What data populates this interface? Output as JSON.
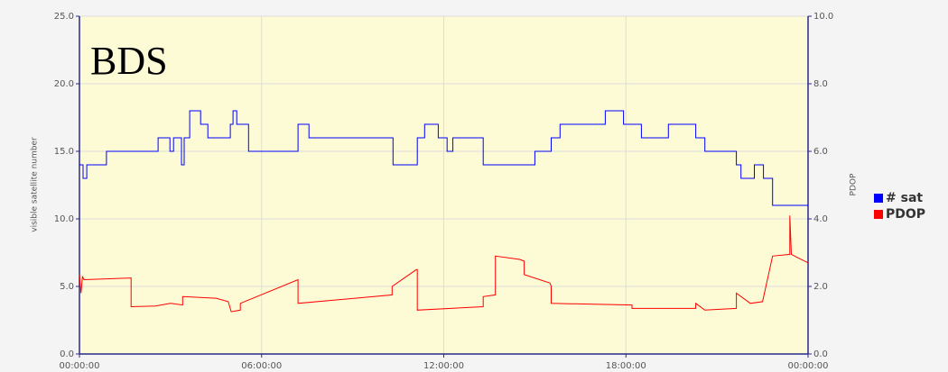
{
  "chart_data": {
    "type": "line",
    "annotation": "BDS",
    "ylabel": "visible satellite number",
    "y2label": "PDOP",
    "xlim": [
      0,
      24
    ],
    "xticks": [
      {
        "value": 0,
        "label": "00:00:00"
      },
      {
        "value": 6,
        "label": "06:00:00"
      },
      {
        "value": 12,
        "label": "12:00:00"
      },
      {
        "value": 18,
        "label": "18:00:00"
      },
      {
        "value": 24,
        "label": "00:00:00"
      }
    ],
    "ylim": [
      0,
      25
    ],
    "yticks": [
      {
        "value": 0,
        "label": "0.0"
      },
      {
        "value": 5,
        "label": "5.0"
      },
      {
        "value": 10,
        "label": "10.0"
      },
      {
        "value": 15,
        "label": "15.0"
      },
      {
        "value": 20,
        "label": "20.0"
      },
      {
        "value": 25,
        "label": "25.0"
      }
    ],
    "y2lim": [
      0,
      10
    ],
    "y2ticks": [
      {
        "value": 0,
        "label": "0.0"
      },
      {
        "value": 2,
        "label": "2.0"
      },
      {
        "value": 4,
        "label": "4.0"
      },
      {
        "value": 6,
        "label": "6.0"
      },
      {
        "value": 8,
        "label": "8.0"
      },
      {
        "value": 10,
        "label": "10.0"
      }
    ],
    "grid": true,
    "legend": "right",
    "series": [
      {
        "name": "# sat",
        "color": "#0000ff",
        "x": [
          0,
          0.12,
          0.12,
          0.24,
          0.24,
          0.89,
          0.89,
          2.59,
          2.59,
          2.98,
          2.98,
          3.1,
          3.1,
          3.36,
          3.36,
          3.45,
          3.45,
          3.63,
          3.63,
          3.99,
          3.99,
          4.23,
          4.23,
          4.97,
          4.97,
          5.06,
          5.06,
          5.18,
          5.18,
          5.57,
          5.57,
          7.2,
          7.2,
          7.56,
          7.56,
          10.33,
          10.33,
          11.13,
          11.13,
          11.37,
          11.37,
          11.82,
          11.82,
          12.11,
          12.11,
          12.3,
          12.3,
          13.3,
          13.3,
          15.0,
          15.0,
          15.54,
          15.54,
          15.83,
          15.83,
          17.32,
          17.32,
          17.92,
          17.92,
          18.51,
          18.51,
          19.4,
          19.4,
          20.3,
          20.3,
          20.6,
          20.6,
          21.64,
          21.64,
          21.79,
          21.79,
          22.23,
          22.23,
          22.53,
          22.53,
          22.83,
          22.83,
          24
        ],
        "values": [
          14,
          14,
          13,
          13,
          14,
          14,
          15,
          15,
          16,
          16,
          15,
          15,
          16,
          16,
          14,
          14,
          16,
          16,
          18,
          18,
          17,
          17,
          16,
          16,
          17,
          17,
          18,
          18,
          17,
          17,
          15,
          15,
          17,
          17,
          16,
          16,
          14,
          14,
          16,
          16,
          17,
          17,
          16,
          16,
          15,
          15,
          16,
          16,
          14,
          14,
          15,
          15,
          16,
          16,
          17,
          17,
          18,
          18,
          17,
          17,
          16,
          16,
          17,
          17,
          16,
          16,
          15,
          15,
          14,
          14,
          13,
          13,
          14,
          14,
          13,
          13,
          11,
          11
        ]
      },
      {
        "name": "PDOP",
        "color": "#ff0000",
        "axis": "y2",
        "x": [
          0,
          0.05,
          0.1,
          0.15,
          1.7,
          1.7,
          2.5,
          3.0,
          3.4,
          3.4,
          4.5,
          4.9,
          5.0,
          5.3,
          5.3,
          7.2,
          7.2,
          10.3,
          10.3,
          11.1,
          11.13,
          11.13,
          13.3,
          13.3,
          13.7,
          13.7,
          14.5,
          14.65,
          14.65,
          15.5,
          15.54,
          15.54,
          18.2,
          18.2,
          20.3,
          20.3,
          20.6,
          21.64,
          21.64,
          22.1,
          22.5,
          22.83,
          23.4,
          23.4,
          23.45,
          24
        ],
        "values": [
          2.35,
          1.8,
          2.3,
          2.2,
          2.25,
          1.4,
          1.42,
          1.5,
          1.45,
          1.7,
          1.65,
          1.55,
          1.25,
          1.3,
          1.5,
          2.2,
          1.5,
          1.75,
          2.0,
          2.5,
          2.5,
          1.3,
          1.4,
          1.7,
          1.75,
          2.9,
          2.8,
          2.75,
          2.35,
          2.1,
          2.0,
          1.5,
          1.45,
          1.35,
          1.35,
          1.5,
          1.3,
          1.35,
          1.8,
          1.5,
          1.55,
          2.9,
          2.95,
          4.1,
          2.95,
          2.7
        ]
      }
    ]
  }
}
